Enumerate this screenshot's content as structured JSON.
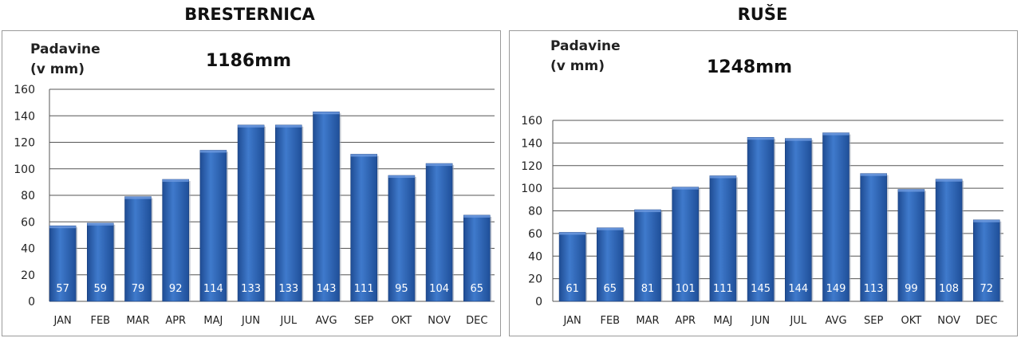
{
  "chart_data": [
    {
      "type": "bar",
      "title": "BRESTERNICA",
      "ylabel": "Padavine\n(v mm)",
      "annotation": "1186mm",
      "categories": [
        "JAN",
        "FEB",
        "MAR",
        "APR",
        "MAJ",
        "JUN",
        "JUL",
        "AVG",
        "SEP",
        "OKT",
        "NOV",
        "DEC"
      ],
      "values": [
        57,
        59,
        79,
        92,
        114,
        133,
        133,
        143,
        111,
        95,
        104,
        65
      ],
      "ylim": [
        0,
        160
      ],
      "yticks": [
        0,
        20,
        40,
        60,
        80,
        100,
        120,
        140,
        160
      ],
      "grid": true,
      "color": "#2e63b3"
    },
    {
      "type": "bar",
      "title": "RUŠE",
      "ylabel": "Padavine\n(v mm)",
      "annotation": "1248mm",
      "categories": [
        "JAN",
        "FEB",
        "MAR",
        "APR",
        "MAJ",
        "JUN",
        "JUL",
        "AVG",
        "SEP",
        "OKT",
        "NOV",
        "DEC"
      ],
      "values": [
        61,
        65,
        81,
        101,
        111,
        145,
        144,
        149,
        113,
        99,
        108,
        72
      ],
      "ylim": [
        0,
        160
      ],
      "yticks": [
        0,
        20,
        40,
        60,
        80,
        100,
        120,
        140,
        160
      ],
      "grid": true,
      "color": "#2e63b3"
    }
  ]
}
